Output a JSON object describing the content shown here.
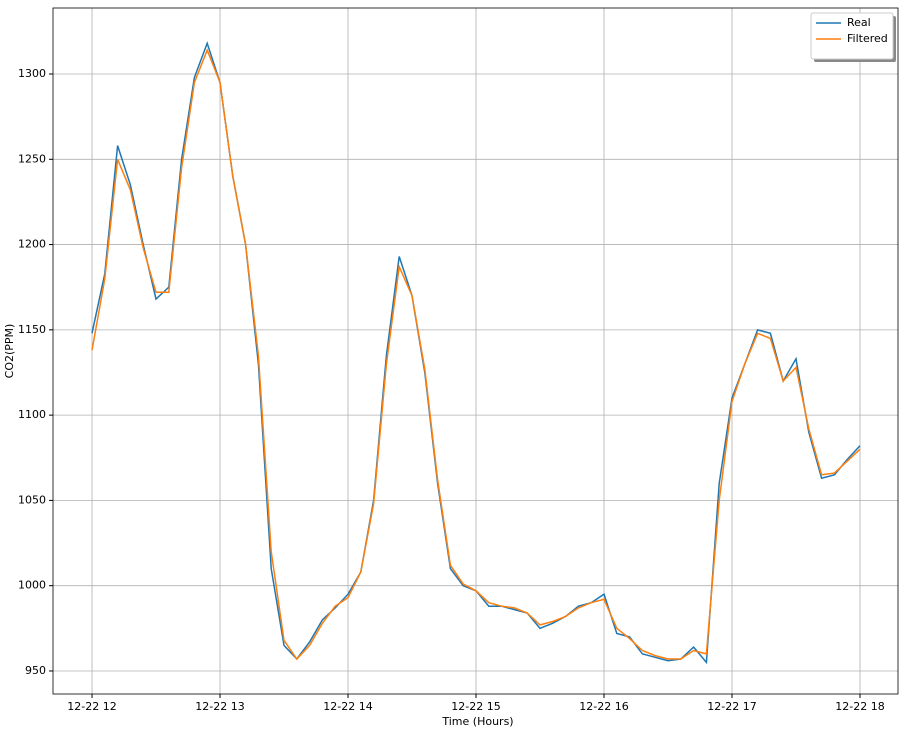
{
  "chart_data": {
    "type": "line",
    "xlabel": "Time (Hours)",
    "ylabel": "CO2(PPM)",
    "x": [
      12,
      12.1,
      12.2,
      12.3,
      12.4,
      12.5,
      12.6,
      12.7,
      12.8,
      12.9,
      13,
      13.1,
      13.2,
      13.3,
      13.4,
      13.5,
      13.6,
      13.7,
      13.8,
      13.9,
      14,
      14.1,
      14.2,
      14.3,
      14.4,
      14.5,
      14.6,
      14.7,
      14.8,
      14.9,
      15,
      15.1,
      15.2,
      15.3,
      15.4,
      15.5,
      15.6,
      15.7,
      15.8,
      15.9,
      16,
      16.1,
      16.2,
      16.3,
      16.4,
      16.5,
      16.6,
      16.7,
      16.8,
      16.9,
      17,
      17.1,
      17.2,
      17.3,
      17.4,
      17.5,
      17.6,
      17.7,
      17.8,
      17.9,
      18
    ],
    "series": [
      {
        "name": "Real",
        "color": "#1f77b4",
        "values": [
          1148,
          1183,
          1258,
          1235,
          1200,
          1168,
          1175,
          1250,
          1298,
          1318,
          1295,
          1240,
          1200,
          1130,
          1010,
          965,
          957,
          967,
          980,
          987,
          995,
          1008,
          1050,
          1135,
          1193,
          1170,
          1125,
          1060,
          1010,
          1000,
          997,
          988,
          988,
          986,
          984,
          975,
          978,
          982,
          988,
          990,
          995,
          972,
          970,
          960,
          958,
          956,
          957,
          964,
          955,
          1060,
          1110,
          1130,
          1150,
          1148,
          1120,
          1133,
          1090,
          1063,
          1065,
          1074,
          1082
        ]
      },
      {
        "name": "Filtered",
        "color": "#ff7f0e",
        "values": [
          1138,
          1180,
          1250,
          1232,
          1198,
          1172,
          1172,
          1245,
          1295,
          1314,
          1295,
          1240,
          1200,
          1135,
          1020,
          968,
          957,
          965,
          978,
          988,
          993,
          1008,
          1048,
          1130,
          1187,
          1170,
          1127,
          1062,
          1012,
          1001,
          997,
          990,
          988,
          987,
          984,
          977,
          979,
          982,
          987,
          990,
          992,
          975,
          969,
          962,
          959,
          957,
          957,
          962,
          960,
          1050,
          1108,
          1130,
          1148,
          1145,
          1120,
          1128,
          1092,
          1065,
          1066,
          1073,
          1080
        ]
      }
    ],
    "xlim": [
      11.695,
      18.297
    ],
    "ylim": [
      936.5,
      1338.7
    ],
    "xticks": [
      {
        "value": 12,
        "label": "12-22 12"
      },
      {
        "value": 13,
        "label": "12-22 13"
      },
      {
        "value": 14,
        "label": "12-22 14"
      },
      {
        "value": 15,
        "label": "12-22 15"
      },
      {
        "value": 16,
        "label": "12-22 16"
      },
      {
        "value": 17,
        "label": "12-22 17"
      },
      {
        "value": 18,
        "label": "12-22 18"
      }
    ],
    "yticks": [
      950,
      1000,
      1050,
      1100,
      1150,
      1200,
      1250,
      1300
    ],
    "grid": true,
    "legend": "upper right"
  }
}
